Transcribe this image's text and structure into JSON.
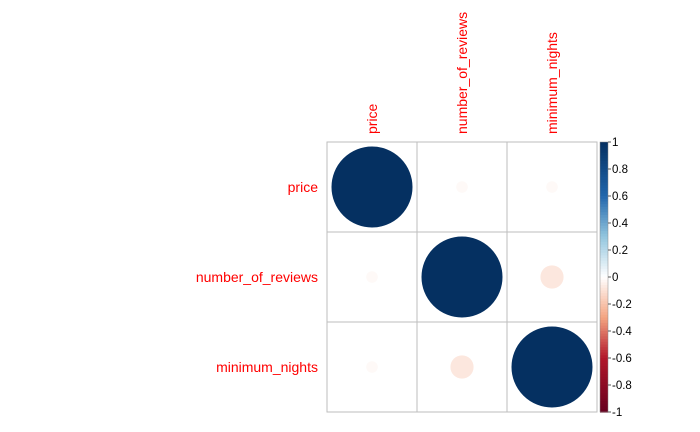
{
  "chart_data": {
    "type": "heatmap",
    "variables": [
      "price",
      "number_of_reviews",
      "minimum_nights"
    ],
    "matrix": [
      [
        1.0,
        -0.02,
        -0.02
      ],
      [
        -0.02,
        1.0,
        -0.08
      ],
      [
        -0.02,
        -0.08,
        1.0
      ]
    ],
    "colorbar_ticks": [
      "1",
      "0.8",
      "0.6",
      "0.4",
      "0.2",
      "0",
      "-0.2",
      "-0.4",
      "-0.6",
      "-0.8",
      "-1"
    ],
    "colorbar_range": [
      -1,
      1
    ],
    "label_color": "#ff0000",
    "grid": true,
    "legend": "right"
  }
}
